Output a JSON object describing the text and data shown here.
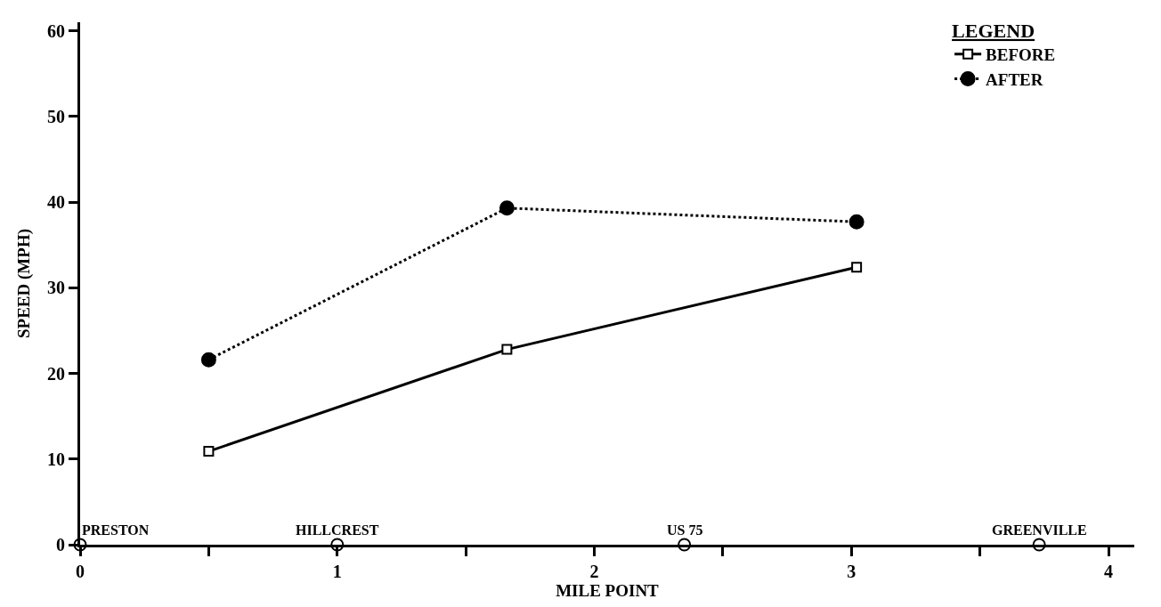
{
  "chart_data": {
    "type": "line",
    "xlabel": "MILE POINT",
    "ylabel": "SPEED (MPH)",
    "legend_title": "LEGEND",
    "legend": "top right",
    "xlim": [
      0,
      4.1
    ],
    "xticks": [
      0,
      {
        "value": 0.5,
        "label": null
      },
      1,
      {
        "value": 1.5,
        "label": null
      },
      2,
      {
        "value": 2.5,
        "label": null
      },
      3,
      {
        "value": 3.5,
        "label": null
      },
      4
    ],
    "ylim": [
      0,
      61
    ],
    "yticks": [
      0,
      10,
      20,
      30,
      40,
      50,
      60
    ],
    "series": [
      {
        "name": "BEFORE",
        "color": "#000000",
        "x": [
          0.5,
          1.66,
          3.02
        ],
        "values": [
          10.9,
          22.8,
          32.4
        ],
        "marker": "square",
        "line_style": "solid"
      },
      {
        "name": "AFTER",
        "color": "#000000",
        "x": [
          0.5,
          1.66,
          3.02
        ],
        "values": [
          21.6,
          39.3,
          37.7
        ],
        "marker": "circle",
        "line_style": "dotted"
      },
      {
        "type": "scatter",
        "color": "#000000",
        "x": [
          0,
          1,
          2.35,
          3.73
        ],
        "values": [
          0,
          0,
          0,
          0
        ],
        "marker": "circle"
      }
    ],
    "annotations": [
      {
        "text": "PRESTON",
        "x": 0,
        "y": 0
      },
      {
        "text": "HILLCREST",
        "x": 1,
        "y": 0
      },
      {
        "text": "US 75",
        "x": 2.35,
        "y": 0
      },
      {
        "text": "GREENVILLE",
        "x": 3.73,
        "y": 0
      }
    ]
  }
}
